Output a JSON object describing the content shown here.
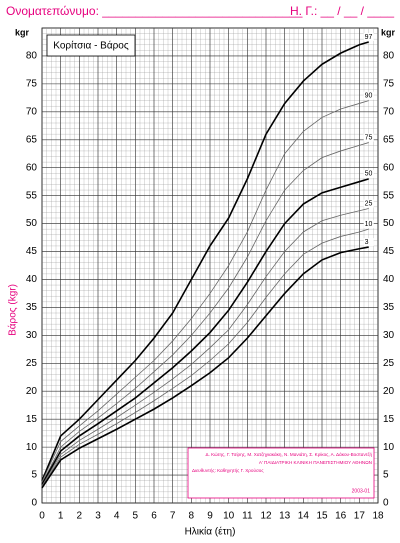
{
  "header": {
    "name_field": "Ονοματεπώνυμο: ______________________________",
    "date_field": "Η. Γ.: __ / __ / ____"
  },
  "chart_data": {
    "type": "line",
    "title": "Κορίτσια - Βάρος",
    "x_label": "Ηλικία (έτη)",
    "y_label": "Βάρος (kgr)",
    "y_unit": "kgr",
    "credits": [
      "Δ. Κώτης, Γ. Τσίρης, Μ. Χατζηγιακάκη, Ν. Μανιάτη, Σ. Κρίκος, Α. Δάκου-Βοσταντζή",
      "Α' ΠΑΙΔΙΑΤΡΙΚΗ ΚΛΙΝΙΚΗ ΠΑΝΕΠΙΣΤΗΜΙΟΥ ΑΘΗΝΩΝ",
      "Διευθυντής: Καθηγητής Γ. Χρούσος",
      "2003-01"
    ],
    "x": [
      0,
      1,
      2,
      3,
      4,
      5,
      6,
      7,
      8,
      9,
      10,
      11,
      12,
      13,
      14,
      15,
      16,
      17,
      17.5
    ],
    "series": [
      {
        "name": "97",
        "color": "#000000",
        "values": [
          4,
          12,
          15,
          18.5,
          22,
          25.5,
          29.5,
          34,
          40,
          46,
          51,
          58,
          66,
          71.5,
          75.5,
          78.5,
          80.5,
          82,
          82.5
        ]
      },
      {
        "name": "90",
        "color": "#666666",
        "values": [
          3.8,
          11,
          13.8,
          16.5,
          19.5,
          22.5,
          25.5,
          29,
          33,
          37.5,
          42.5,
          48.5,
          56,
          62.5,
          66.5,
          69,
          70.5,
          71.5,
          72
        ]
      },
      {
        "name": "75",
        "color": "#666666",
        "values": [
          3.5,
          10,
          12.8,
          15.2,
          17.8,
          20.5,
          23.5,
          26.5,
          30,
          34,
          38.5,
          44,
          50.5,
          56,
          59.5,
          61.8,
          63,
          64,
          64.5
        ]
      },
      {
        "name": "50",
        "color": "#000000",
        "values": [
          3.3,
          9.3,
          12,
          14.2,
          16.5,
          18.8,
          21.5,
          24.2,
          27.2,
          30.5,
          34.5,
          39.5,
          45,
          50,
          53.5,
          55.5,
          56.5,
          57.5,
          58
        ]
      },
      {
        "name": "25",
        "color": "#666666",
        "values": [
          3.1,
          8.7,
          11.2,
          13.2,
          15.3,
          17.5,
          19.8,
          22.2,
          24.8,
          27.8,
          31,
          35.5,
          40.5,
          45,
          48.5,
          50.5,
          51.5,
          52.3,
          52.7
        ]
      },
      {
        "name": "10",
        "color": "#666666",
        "values": [
          2.9,
          8.2,
          10.5,
          12.3,
          14.2,
          16.2,
          18.3,
          20.5,
          22.8,
          25.5,
          28.5,
          32.3,
          36.8,
          41,
          44.5,
          46.5,
          47.7,
          48.5,
          49
        ]
      },
      {
        "name": "3",
        "color": "#000000",
        "values": [
          2.7,
          7.7,
          9.8,
          11.5,
          13.2,
          15,
          16.8,
          18.8,
          21,
          23.3,
          26,
          29.5,
          33.5,
          37.5,
          41,
          43.5,
          44.8,
          45.5,
          45.8
        ]
      }
    ],
    "xlim": [
      0,
      18
    ],
    "xticks": [
      0,
      1,
      2,
      3,
      4,
      5,
      6,
      7,
      8,
      9,
      10,
      11,
      12,
      13,
      14,
      15,
      16,
      17,
      18
    ],
    "ylim": [
      0,
      85
    ],
    "yticks": [
      0,
      5,
      10,
      15,
      20,
      25,
      30,
      35,
      40,
      45,
      50,
      55,
      60,
      65,
      70,
      75,
      80
    ],
    "grid": true
  }
}
